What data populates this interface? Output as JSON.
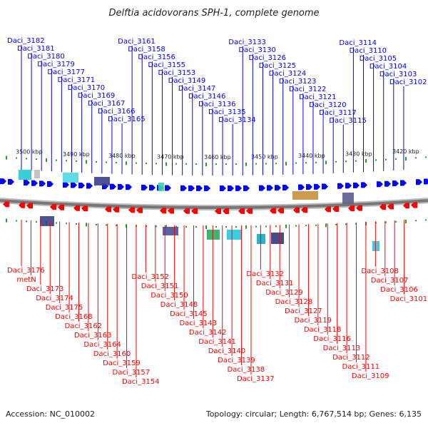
{
  "title": "Delftia acidovorans SPH-1, complete genome",
  "footer": {
    "accession": "Accession: NC_010002",
    "topology": "Topology: circular; Length: 6,767,514 bp; Genes: 6,135"
  },
  "colors": {
    "forward": "#0000ff",
    "reverse": "#ff0000",
    "backbone": "#777777",
    "tick": "#2a9a2a"
  },
  "position_ticks": [
    "3500 kbp",
    "3490 kbp",
    "3480 kbp",
    "3470 kbp",
    "3460 kbp",
    "3450 kbp",
    "3440 kbp",
    "3430 kbp",
    "3420 kbp"
  ],
  "forward_genes": [
    "Daci_3182",
    "Daci_3181",
    "Daci_3180",
    "Daci_3179",
    "Daci_3177",
    "Daci_3171",
    "Daci_3170",
    "Daci_3169",
    "Daci_3167",
    "Daci_3166",
    "Daci_3165",
    "Daci_3161",
    "Daci_3158",
    "Daci_3156",
    "Daci_3155",
    "Daci_3153",
    "Daci_3149",
    "Daci_3147",
    "Daci_3146",
    "Daci_3136",
    "Daci_3135",
    "Daci_3134",
    "Daci_3133",
    "Daci_3130",
    "Daci_3126",
    "Daci_3125",
    "Daci_3124",
    "Daci_3123",
    "Daci_3122",
    "Daci_3121",
    "Daci_3120",
    "Daci_3117",
    "Daci_3115",
    "Daci_3114",
    "Daci_3110",
    "Daci_3105",
    "Daci_3104",
    "Daci_3103",
    "Daci_3102"
  ],
  "reverse_genes": [
    "Daci_3176",
    "metN",
    "Daci_3173",
    "Daci_3174",
    "Daci_3175",
    "Daci_3168",
    "Daci_3162",
    "Daci_3163",
    "Daci_3164",
    "Daci_3160",
    "Daci_3159",
    "Daci_3157",
    "Daci_3154",
    "Daci_3152",
    "Daci_3151",
    "Daci_3150",
    "Daci_3148",
    "Daci_3145",
    "Daci_3143",
    "Daci_3142",
    "Daci_3141",
    "Daci_3140",
    "Daci_3139",
    "Daci_3138",
    "Daci_3137",
    "Daci_3132",
    "Daci_3131",
    "Daci_3129",
    "Daci_3128",
    "Daci_3127",
    "Daci_3119",
    "Daci_3118",
    "Daci_3116",
    "Daci_3113",
    "Daci_3112",
    "Daci_3111",
    "Daci_3109",
    "Daci_3108",
    "Daci_3107",
    "Daci_3106",
    "Daci_3101"
  ]
}
